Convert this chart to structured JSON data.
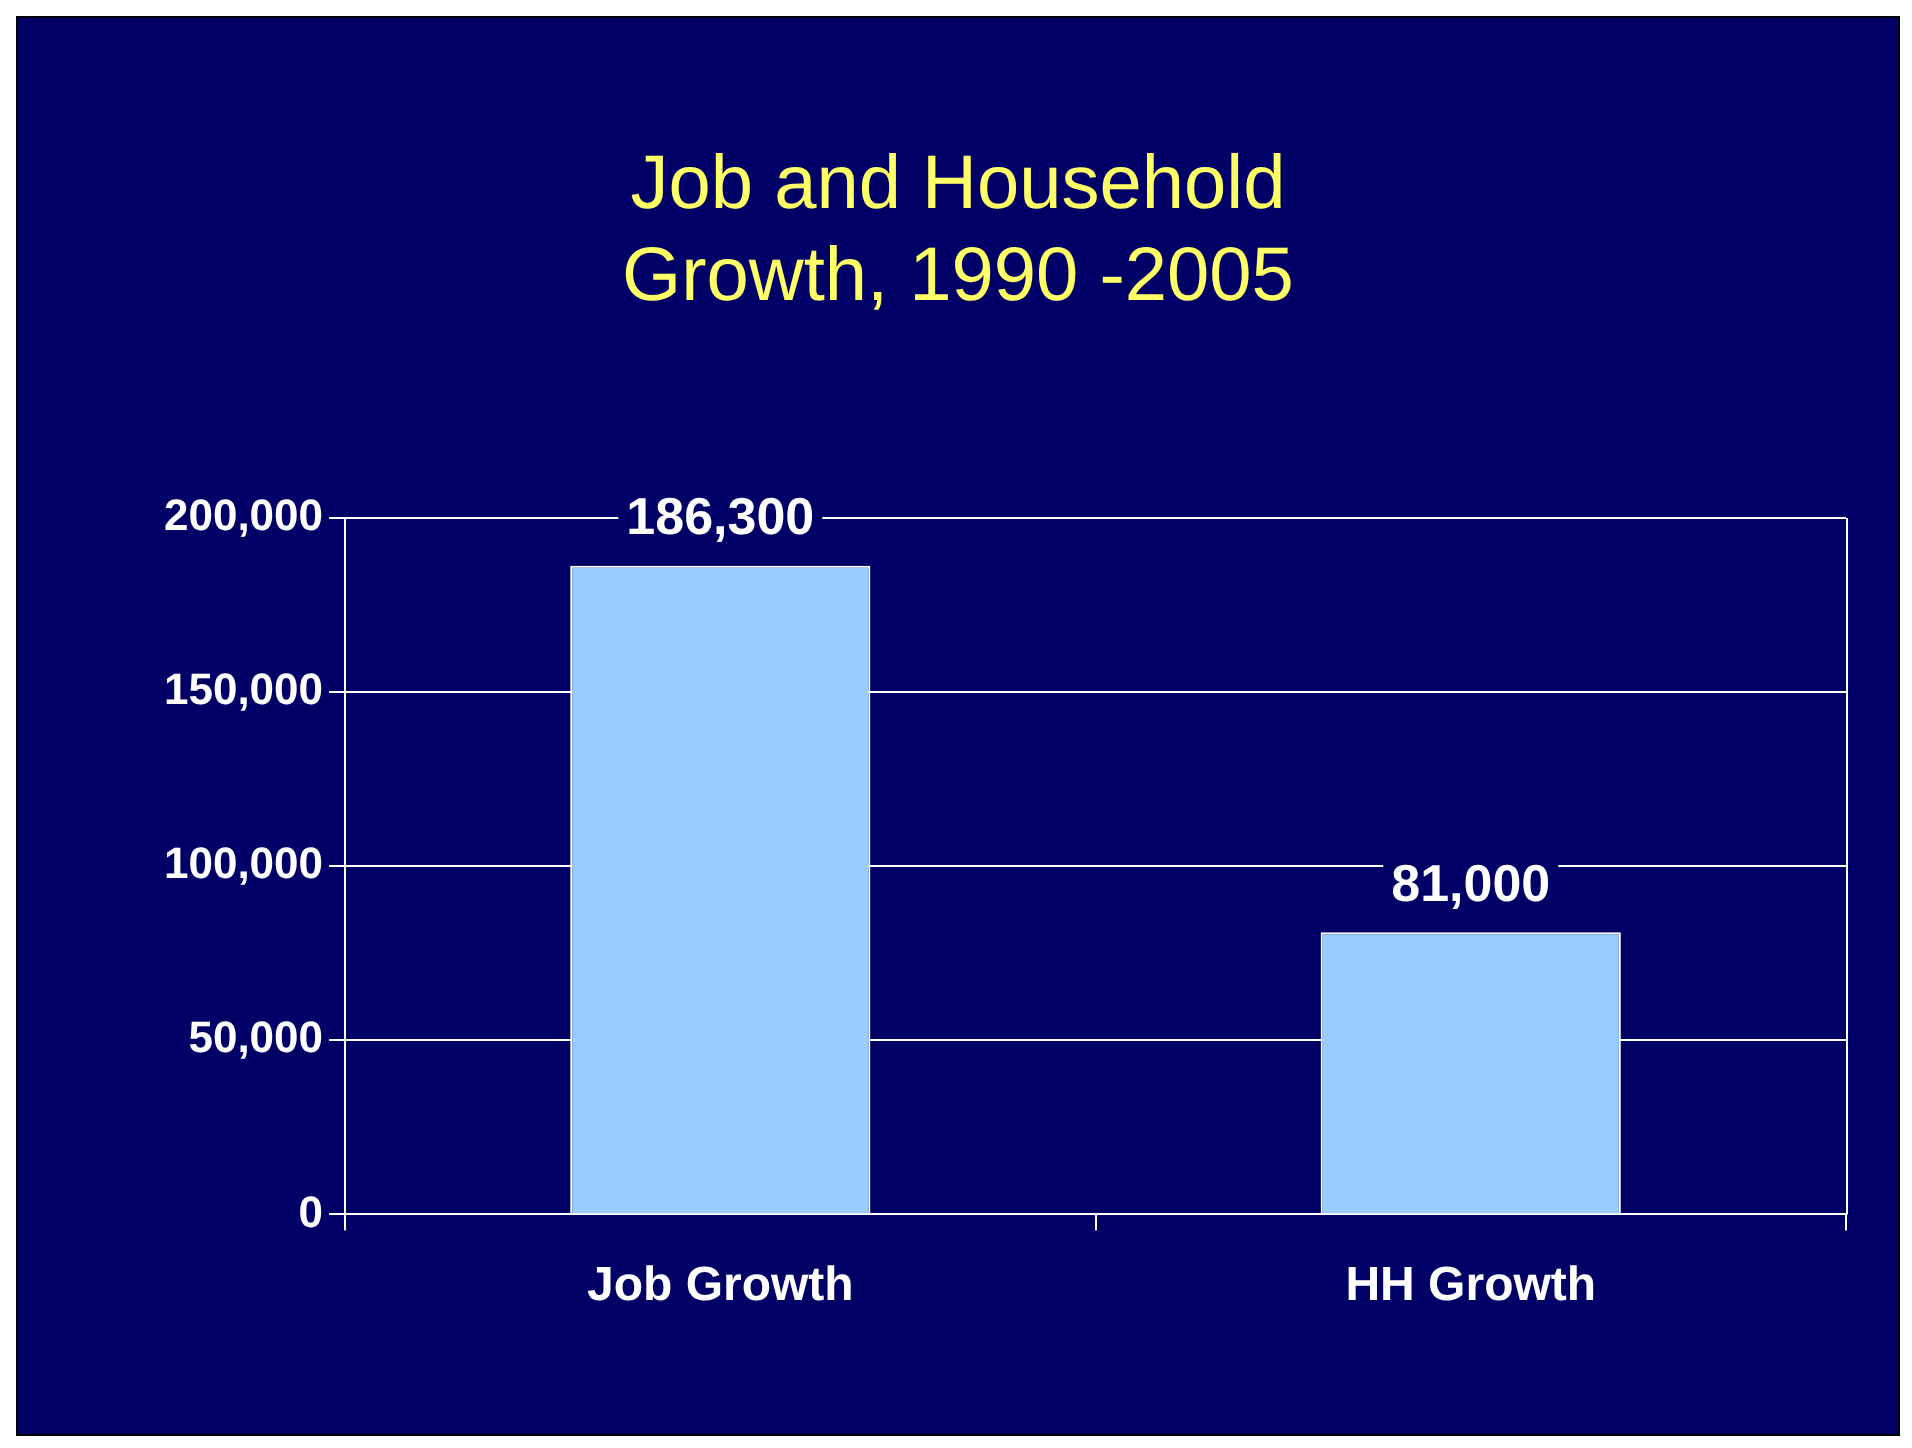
{
  "chart_data": {
    "type": "bar",
    "title": "Job and Household Growth, 1990 -2005",
    "categories": [
      "Job Growth",
      "HH Growth"
    ],
    "values": [
      186300,
      81000
    ],
    "color": "#99ccff",
    "value_labels": [
      "186,300",
      "81,000"
    ],
    "ylim": [
      0,
      200000
    ],
    "yticks": [
      0,
      {
        "value": 50000,
        "label": "50,000"
      },
      {
        "value": 100000,
        "label": "100,000"
      },
      {
        "value": 150000,
        "label": "150,000"
      },
      {
        "value": 200000,
        "label": "200,000"
      }
    ],
    "grid": "y"
  }
}
